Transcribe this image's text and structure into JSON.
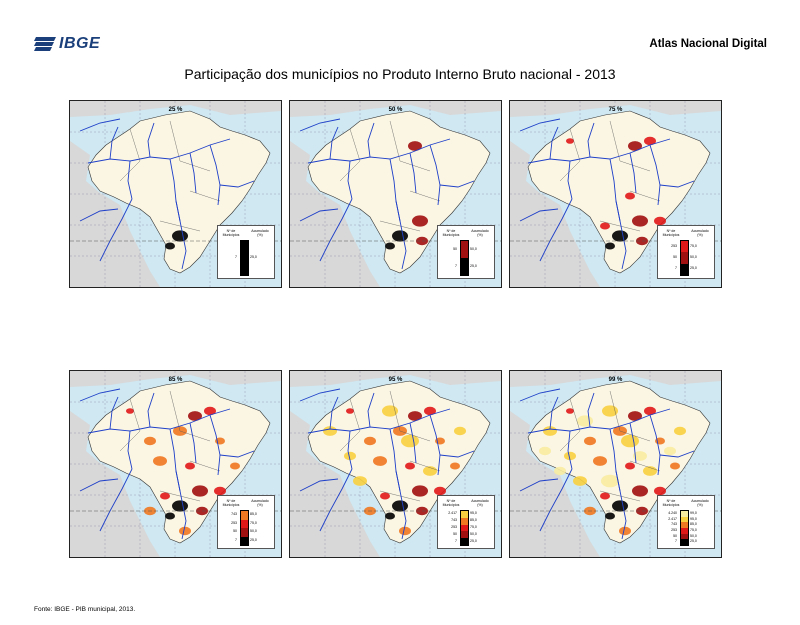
{
  "header": {
    "logo_text": "IBGE",
    "atlas_label": "Atlas Nacional Digital",
    "title": "Participação dos municípios no Produto Interno Bruto nacional - 2013"
  },
  "legend_text": {
    "municipios_heading": "Nº de Municípios",
    "accumulated_heading": "Acumulado (%)"
  },
  "maps": [
    {
      "label": "25 %",
      "level": 1,
      "tiers": [
        {
          "n": "7",
          "pct": "25,0",
          "color": "#000000"
        }
      ]
    },
    {
      "label": "50 %",
      "level": 2,
      "tiers": [
        {
          "n": "50",
          "pct": "50,0",
          "color": "#a01010"
        },
        {
          "n": "7",
          "pct": "25,0",
          "color": "#000000"
        }
      ]
    },
    {
      "label": "75 %",
      "level": 3,
      "tiers": [
        {
          "n": "253",
          "pct": "75,0",
          "color": "#e01818"
        },
        {
          "n": "50",
          "pct": "50,0",
          "color": "#a01010"
        },
        {
          "n": "7",
          "pct": "25,0",
          "color": "#000000"
        }
      ]
    },
    {
      "label": "85 %",
      "level": 4,
      "tiers": [
        {
          "n": "743",
          "pct": "85,0",
          "color": "#f07820"
        },
        {
          "n": "253",
          "pct": "75,0",
          "color": "#e01818"
        },
        {
          "n": "50",
          "pct": "50,0",
          "color": "#a01010"
        },
        {
          "n": "7",
          "pct": "25,0",
          "color": "#000000"
        }
      ]
    },
    {
      "label": "95 %",
      "level": 5,
      "tiers": [
        {
          "n": "2.417",
          "pct": "95,0",
          "color": "#f8d040"
        },
        {
          "n": "743",
          "pct": "85,0",
          "color": "#f07820"
        },
        {
          "n": "253",
          "pct": "75,0",
          "color": "#e01818"
        },
        {
          "n": "50",
          "pct": "50,0",
          "color": "#a01010"
        },
        {
          "n": "7",
          "pct": "25,0",
          "color": "#000000"
        }
      ]
    },
    {
      "label": "99 %",
      "level": 6,
      "tiers": [
        {
          "n": "4.240",
          "pct": "99,0",
          "color": "#f8eca0"
        },
        {
          "n": "2.417",
          "pct": "95,0",
          "color": "#f8d040"
        },
        {
          "n": "743",
          "pct": "85,0",
          "color": "#f07820"
        },
        {
          "n": "253",
          "pct": "75,0",
          "color": "#e01818"
        },
        {
          "n": "50",
          "pct": "50,0",
          "color": "#a01010"
        },
        {
          "n": "7",
          "pct": "25,0",
          "color": "#000000"
        }
      ]
    }
  ],
  "colors": {
    "ocean": "#cfe8f2",
    "land_neighbors": "#d8d8d8",
    "brazil_base": "#fbf6e4",
    "rivers": "#1e3fc8",
    "logo_blue": "#1a3f7a"
  },
  "footer": {
    "source": "Fonte: IBGE - PIB municipal, 2013."
  }
}
